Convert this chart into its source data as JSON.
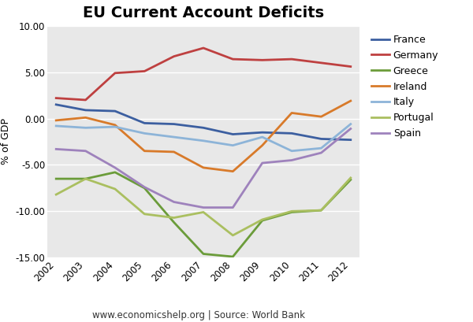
{
  "title": "EU Current Account Deficits",
  "ylabel": "% of GDP",
  "footnote": "www.economicshelp.org | Source: World Bank",
  "years": [
    2002,
    2003,
    2004,
    2005,
    2006,
    2007,
    2008,
    2009,
    2010,
    2011,
    2012
  ],
  "series": {
    "France": [
      1.5,
      0.9,
      0.8,
      -0.5,
      -0.6,
      -1.0,
      -1.7,
      -1.5,
      -1.6,
      -2.2,
      -2.3
    ],
    "Germany": [
      2.2,
      2.0,
      4.9,
      5.1,
      6.7,
      7.6,
      6.4,
      6.3,
      6.4,
      6.0,
      5.6
    ],
    "Greece": [
      -6.5,
      -6.5,
      -5.8,
      -7.5,
      -11.2,
      -14.6,
      -14.9,
      -11.0,
      -10.1,
      -9.9,
      -6.6
    ],
    "Ireland": [
      -0.2,
      0.1,
      -0.7,
      -3.5,
      -3.6,
      -5.3,
      -5.7,
      -2.9,
      0.6,
      0.2,
      1.9
    ],
    "Italy": [
      -0.8,
      -1.0,
      -0.9,
      -1.6,
      -2.0,
      -2.4,
      -2.9,
      -2.0,
      -3.5,
      -3.2,
      -0.6
    ],
    "Portugal": [
      -8.2,
      -6.5,
      -7.6,
      -10.3,
      -10.7,
      -10.1,
      -12.6,
      -10.9,
      -10.0,
      -9.9,
      -6.4
    ],
    "Spain": [
      -3.3,
      -3.5,
      -5.3,
      -7.4,
      -9.0,
      -9.6,
      -9.6,
      -4.8,
      -4.5,
      -3.7,
      -1.1
    ]
  },
  "colors": {
    "France": "#3C5FA0",
    "Germany": "#BE4040",
    "Greece": "#6B9C3A",
    "Ireland": "#D87A2A",
    "Italy": "#8DB4D8",
    "Portugal": "#AABF60",
    "Spain": "#9E82BC"
  },
  "ylim": [
    -15.0,
    10.0
  ],
  "yticks": [
    -15.0,
    -10.0,
    -5.0,
    0.0,
    5.0,
    10.0
  ],
  "plot_bgcolor": "#E8E8E8",
  "fig_bgcolor": "#FFFFFF",
  "grid_color": "#FFFFFF",
  "footnote_fontsize": 8.5,
  "title_fontsize": 14,
  "axis_label_fontsize": 9,
  "legend_fontsize": 9,
  "tick_fontsize": 8.5,
  "line_width": 2.0
}
